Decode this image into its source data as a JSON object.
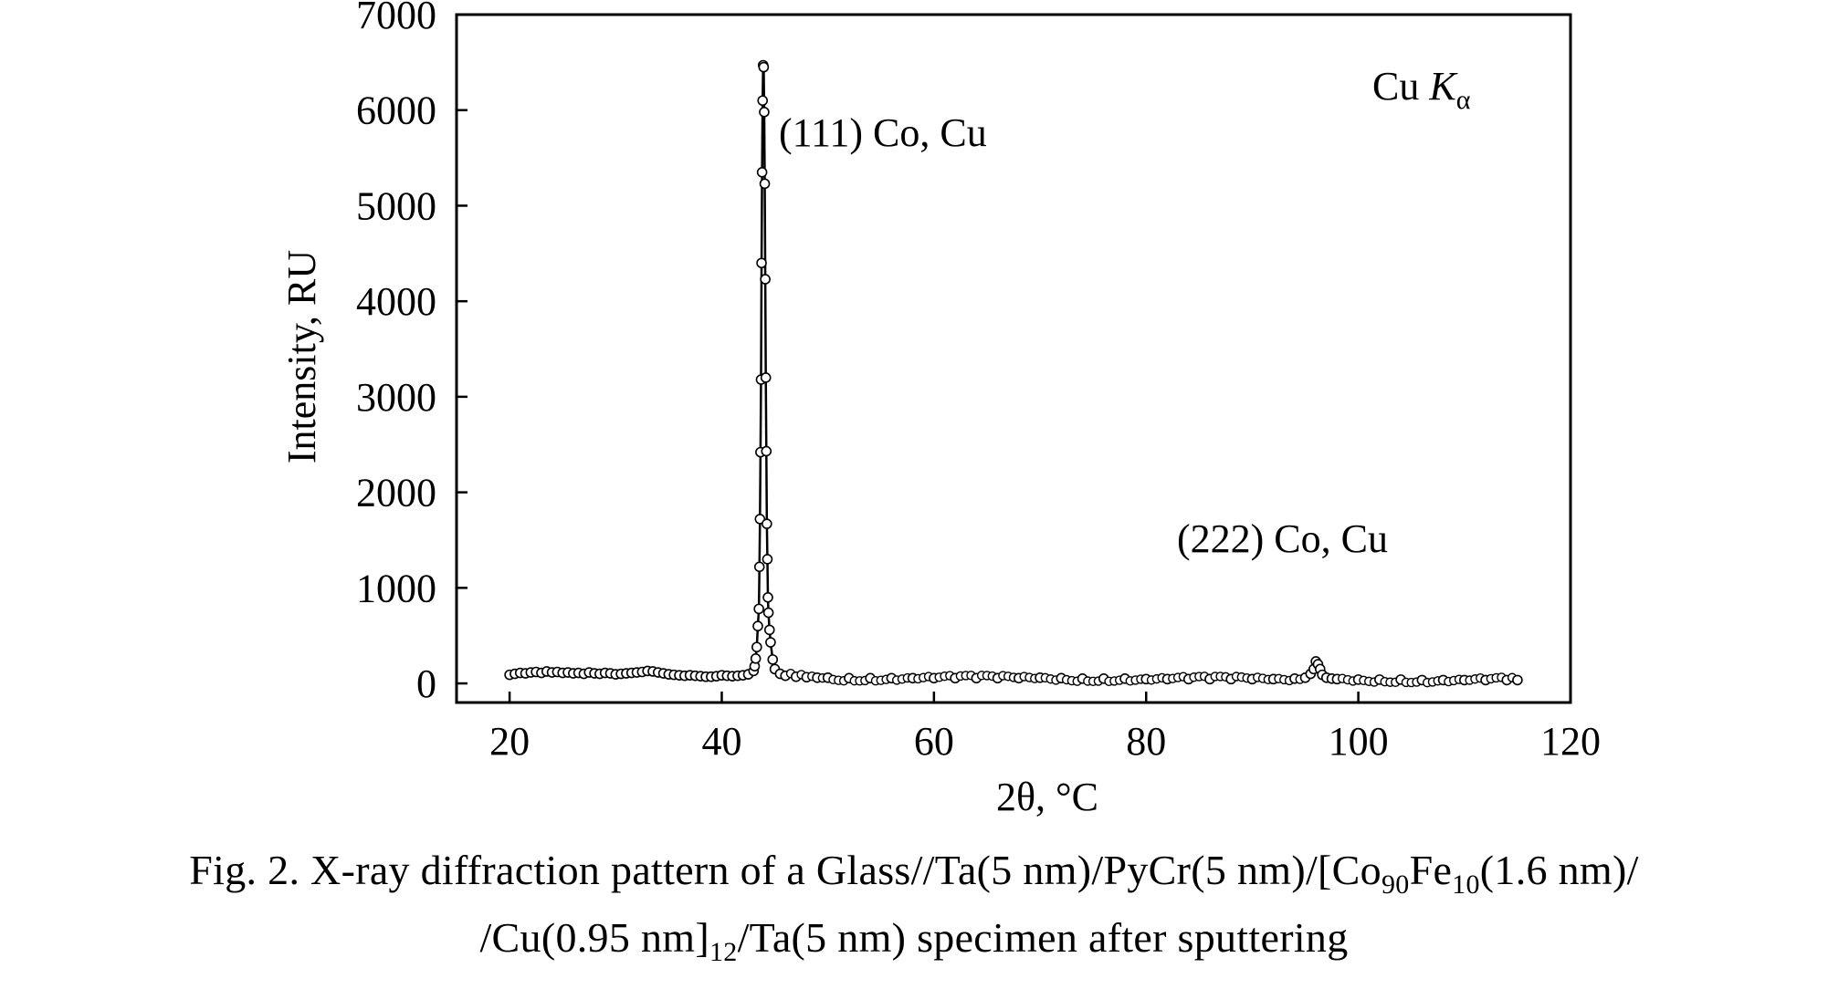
{
  "chart_data": {
    "type": "scatter",
    "xlabel_prefix": "2θ, °C",
    "ylabel": "Intensity, RU",
    "xlim": [
      15,
      120
    ],
    "ylim": [
      -200,
      7000
    ],
    "xticks": [
      20,
      40,
      60,
      80,
      100,
      120
    ],
    "yticks": [
      0,
      1000,
      2000,
      3000,
      4000,
      5000,
      6000,
      7000
    ],
    "grid": false,
    "annotations": {
      "radiation_base": "Cu ",
      "radiation_symbol": "K",
      "radiation_sub": "α",
      "peak1": "(111) Co, Cu",
      "peak2": "(222) Co, Cu"
    },
    "series": [
      {
        "marker": "open-circle",
        "x": [
          20,
          20.5,
          21,
          21.5,
          22,
          22.5,
          23,
          23.5,
          24,
          24.5,
          25,
          25.5,
          26,
          26.5,
          27,
          27.5,
          28,
          28.5,
          29,
          29.5,
          30,
          30.5,
          31,
          31.5,
          32,
          32.5,
          33,
          33.5,
          34,
          34.5,
          35,
          35.5,
          36,
          36.5,
          37,
          37.5,
          38,
          38.5,
          39,
          39.5,
          40,
          40.5,
          41,
          41.5,
          42,
          42.5,
          43,
          43.1,
          43.2,
          43.3,
          43.4,
          43.5,
          43.55,
          43.6,
          43.65,
          43.7,
          43.75,
          43.8,
          43.85,
          43.9,
          43.95,
          44.0,
          44.05,
          44.1,
          44.15,
          44.2,
          44.25,
          44.3,
          44.35,
          44.4,
          44.5,
          44.6,
          44.8,
          45,
          45.5,
          46,
          47,
          48,
          49,
          50,
          52,
          54,
          56,
          58,
          60,
          62,
          64,
          66,
          68,
          70,
          72,
          74,
          76,
          78,
          80,
          82,
          84,
          86,
          88,
          90,
          92,
          94,
          95,
          95.5,
          95.8,
          96.0,
          96.2,
          96.4,
          96.6,
          97,
          97.5,
          98,
          100,
          102,
          104,
          106,
          108,
          110,
          112,
          114,
          115
        ],
        "y": [
          90,
          100,
          110,
          105,
          115,
          120,
          110,
          125,
          115,
          120,
          110,
          115,
          105,
          110,
          100,
          115,
          105,
          100,
          110,
          105,
          95,
          100,
          105,
          110,
          115,
          120,
          130,
          125,
          115,
          105,
          95,
          90,
          85,
          80,
          85,
          80,
          75,
          70,
          70,
          75,
          85,
          80,
          75,
          80,
          85,
          95,
          130,
          180,
          260,
          380,
          600,
          780,
          1220,
          1720,
          2420,
          3180,
          4400,
          5350,
          6100,
          6470,
          6450,
          5980,
          5230,
          4230,
          3200,
          2430,
          1670,
          1300,
          900,
          740,
          560,
          430,
          250,
          150,
          100,
          80,
          70,
          65,
          60,
          60,
          55,
          55,
          55,
          55,
          55,
          55,
          55,
          55,
          55,
          60,
          55,
          50,
          50,
          50,
          45,
          45,
          45,
          45,
          45,
          45,
          45,
          50,
          60,
          100,
          150,
          230,
          200,
          150,
          90,
          60,
          50,
          45,
          40,
          40,
          40,
          35,
          35,
          35,
          35,
          35,
          35
        ]
      }
    ]
  },
  "caption": {
    "line1_a": "Fig. 2. X-ray diffraction pattern of a Glass//Ta(5 nm)/PyCr(5 nm)/[Co",
    "line1_sub1": "90",
    "line1_b": "Fe",
    "line1_sub2": "10",
    "line1_c": "(1.6 nm)/",
    "line2_a": "/Cu(0.95 nm]",
    "line2_sub": "12",
    "line2_b": "/Ta(5 nm) specimen after sputtering"
  }
}
